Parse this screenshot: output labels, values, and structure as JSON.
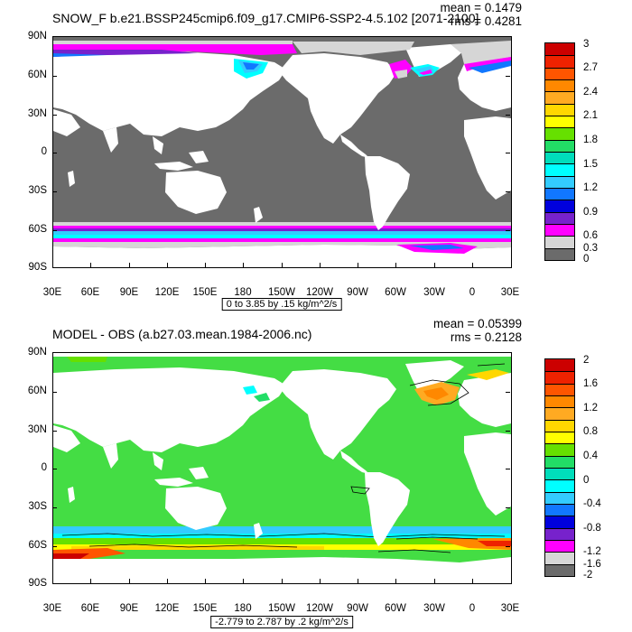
{
  "panels": [
    {
      "title": "SNOW_F b.e21.BSSP245cmip6.f09_g17.CMIP6-SSP2-4.5.102 [2071-2100]",
      "mean_label": "mean = 0.1479",
      "rms_label": "rms = 0.4281",
      "lat_labels": [
        "90N",
        "60N",
        "30N",
        "0",
        "30S",
        "60S",
        "90S"
      ],
      "lon_labels": [
        "30E",
        "60E",
        "90E",
        "120E",
        "150E",
        "180",
        "150W",
        "120W",
        "90W",
        "60W",
        "30W",
        "0",
        "30E"
      ],
      "colorbar_labels": [
        "3",
        "2.7",
        "2.4",
        "2.1",
        "1.8",
        "1.5",
        "1.2",
        "0.9",
        "0.6",
        "0.3",
        "0"
      ],
      "colorbar_colors": [
        "#cc0000",
        "#ee2200",
        "#ff5500",
        "#ff8800",
        "#ffaa22",
        "#ffd700",
        "#ffff00",
        "#66e000",
        "#22dd66",
        "#00ddbb",
        "#00ffff",
        "#33ccff",
        "#1177ff",
        "#0000dd",
        "#7722cc",
        "#ff00ff",
        "#d6d6d6",
        "#6b6b6b"
      ],
      "info_label": "0 to 3.85 by .15 kg/m^2/s",
      "land_color": "#ffffff",
      "ocean_color": "#6b6b6b"
    },
    {
      "title": "MODEL - OBS (a.b27.03.mean.1984-2006.nc)",
      "mean_label": "mean = 0.05399",
      "rms_label": "rms = 0.2128",
      "lat_labels": [
        "90N",
        "60N",
        "30N",
        "0",
        "30S",
        "60S",
        "90S"
      ],
      "lon_labels": [
        "30E",
        "60E",
        "90E",
        "120E",
        "150E",
        "180",
        "150W",
        "120W",
        "90W",
        "60W",
        "30W",
        "0",
        "30E"
      ],
      "colorbar_labels": [
        "2",
        "1.6",
        "1.2",
        "0.8",
        "0.4",
        "0",
        "-0.4",
        "-0.8",
        "-1.2",
        "-1.6",
        "-2"
      ],
      "colorbar_colors": [
        "#cc0000",
        "#ee2200",
        "#ff5500",
        "#ff8800",
        "#ffaa22",
        "#ffd700",
        "#ffff00",
        "#66e000",
        "#22dd66",
        "#00ddbb",
        "#00ffff",
        "#33ccff",
        "#1177ff",
        "#0000dd",
        "#7722cc",
        "#ff00ff",
        "#d6d6d6",
        "#6b6b6b"
      ],
      "info_label": "-2.779 to 2.787 by .2 kg/m^2/s",
      "land_color": "#ffffff",
      "ocean_color": "#44dd44"
    }
  ]
}
